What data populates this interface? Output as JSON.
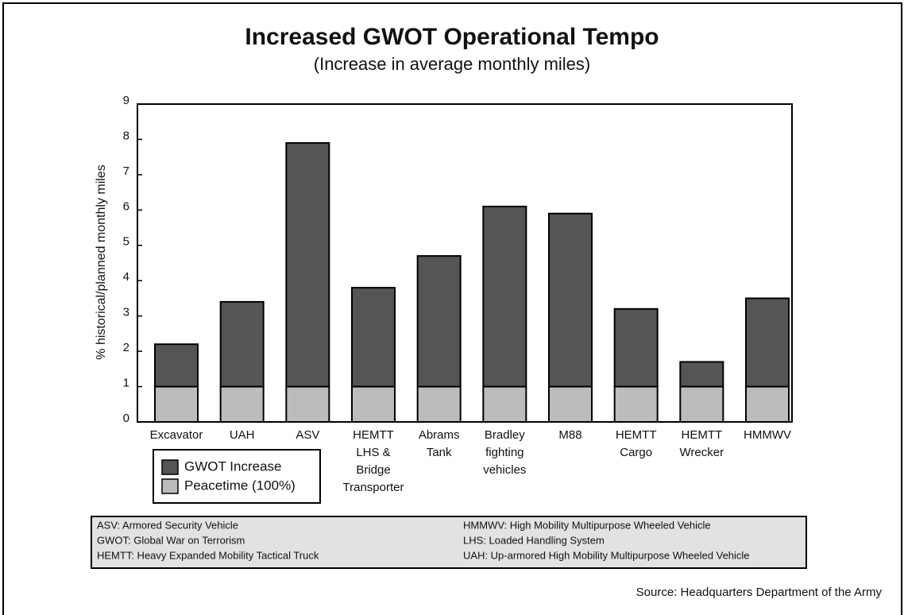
{
  "chart_data": {
    "type": "stacked_bar",
    "title": "Increased GWOT Operational Tempo",
    "subtitle": "(Increase in average monthly miles)",
    "y_label": "% historical/planned monthly miles",
    "categories": [
      [
        "Excavator"
      ],
      [
        "UAH"
      ],
      [
        "ASV"
      ],
      [
        "HEMTT",
        "LHS &",
        "Bridge",
        "Transporter"
      ],
      [
        "Abrams",
        "Tank"
      ],
      [
        "Bradley",
        "fighting",
        "vehicles"
      ],
      [
        "M88"
      ],
      [
        "HEMTT",
        "Cargo"
      ],
      [
        "HEMTT",
        "Wrecker"
      ],
      [
        "HMMWV"
      ]
    ],
    "series": [
      {
        "name": "Peacetime (100%)",
        "color": "#bcbcbc",
        "values": [
          1,
          1,
          1,
          1,
          1,
          1,
          1,
          1,
          1,
          1
        ]
      },
      {
        "name": "GWOT Increase",
        "color": "#555555",
        "values": [
          1.2,
          2.4,
          6.9,
          2.8,
          3.7,
          5.1,
          4.9,
          2.2,
          0.7,
          2.5
        ]
      }
    ],
    "ylim": [
      0,
      9
    ],
    "yticks": [
      0,
      1,
      2,
      3,
      4,
      5,
      6,
      7,
      8,
      9
    ],
    "notes": [
      [
        "ASV: Armored Security Vehicle",
        "GWOT: Global War on Terrorism",
        "HEMTT: Heavy Expanded Mobility Tactical Truck"
      ],
      [
        "HMMWV: High Mobility Multipurpose Wheeled Vehicle",
        "LHS: Loaded Handling System",
        "UAH: Up-armored High Mobility Multipurpose Wheeled Vehicle"
      ]
    ],
    "source": "Source: Headquarters Department of the Army"
  }
}
